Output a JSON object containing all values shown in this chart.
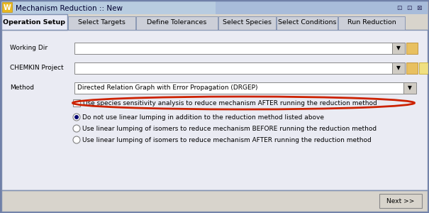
{
  "title": "Mechanism Reduction :: New",
  "title_bar_color": "#c8d4e8",
  "title_bar_gradient_left": "#6688bb",
  "bg_color": "#d8d4cc",
  "content_bg": "#eceef5",
  "white": "#ffffff",
  "border_dark": "#7080a0",
  "border_light": "#a0aabf",
  "tabs": [
    "Operation Setup",
    "Select Targets",
    "Define Tolerances",
    "Select Species",
    "Select Conditions",
    "Run Reduction"
  ],
  "active_tab": 0,
  "method_text": "Directed Relation Graph with Error Propagation (DRGEP)",
  "checkbox_text": "Use species sensitivity analysis to reduce mechanism AFTER running the reduction method",
  "radio_options": [
    "Do not use linear lumping in addition to the reduction method listed above",
    "Use linear lumping of isomers to reduce mechanism BEFORE running the reduction method",
    "Use linear lumping of isomers to reduce mechanism AFTER running the reduction method"
  ],
  "selected_radio": 0,
  "next_btn": "Next >>",
  "highlight_color": "#cc2200",
  "font_size": 6.5,
  "tab_font_size": 6.8
}
